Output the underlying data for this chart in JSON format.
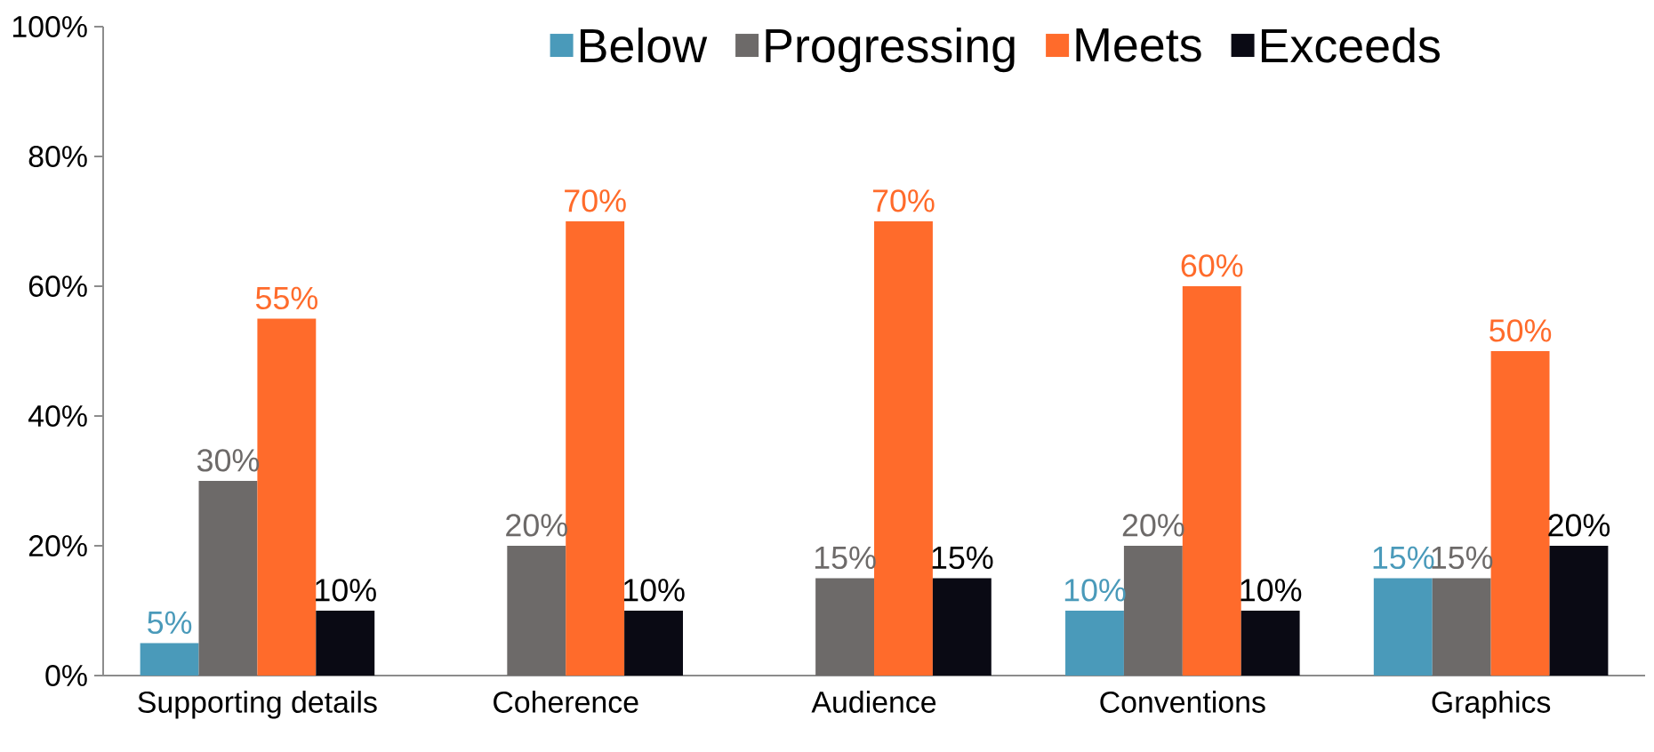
{
  "chart_data": {
    "type": "bar",
    "categories": [
      "Supporting details",
      "Coherence",
      "Audience",
      "Conventions",
      "Graphics"
    ],
    "series": [
      {
        "name": "Below",
        "color": "#4a9aba",
        "values": [
          5,
          null,
          null,
          10,
          15
        ],
        "value_labels": [
          "5%",
          null,
          null,
          "10%",
          "15%"
        ]
      },
      {
        "name": "Progressing",
        "color": "#6d6a69",
        "values": [
          30,
          20,
          15,
          20,
          15
        ],
        "value_labels": [
          "30%",
          "20%",
          "15%",
          "20%",
          "15%"
        ]
      },
      {
        "name": "Meets",
        "color": "#ff6b2b",
        "values": [
          55,
          70,
          70,
          60,
          50
        ],
        "value_labels": [
          "55%",
          "70%",
          "70%",
          "60%",
          "50%"
        ]
      },
      {
        "name": "Exceeds",
        "color": "#0a0a14",
        "values": [
          10,
          10,
          15,
          10,
          20
        ],
        "value_labels": [
          "10%",
          "10%",
          "15%",
          "10%",
          "20%"
        ]
      }
    ],
    "ylim": [
      0,
      100
    ],
    "yticks": [
      {
        "value": 0,
        "label": "0%"
      },
      {
        "value": 20,
        "label": "20%"
      },
      {
        "value": 40,
        "label": "40%"
      },
      {
        "value": 60,
        "label": "60%"
      },
      {
        "value": 80,
        "label": "80%"
      },
      {
        "value": 100,
        "label": "100%"
      }
    ],
    "grid": false,
    "legend": "top"
  }
}
